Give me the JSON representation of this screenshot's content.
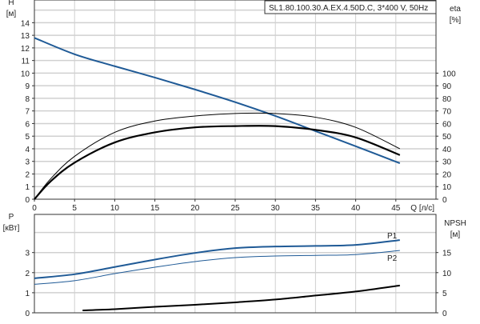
{
  "title": "SL1.80.100.30.A.EX.4.50D.C, 3*400 V, 50Hz",
  "colors": {
    "head": "#1f5a96",
    "eta": "#000000",
    "p": "#1f5a96",
    "npsh": "#000000",
    "grid": "#d0d0d0"
  },
  "chart_data": [
    {
      "type": "line",
      "xlabel": "Q [л/с]",
      "ylabel_left": [
        "H",
        "[м]"
      ],
      "ylabel_right": [
        "eta",
        "[%]"
      ],
      "xlim": [
        0,
        50
      ],
      "ylim_left": [
        0,
        15.8
      ],
      "ylim_right": [
        0,
        158
      ],
      "x_ticks": [
        "0",
        "5",
        "10",
        "15",
        "20",
        "25",
        "30",
        "35",
        "40",
        "45"
      ],
      "y_ticks_left": [
        "0",
        "1",
        "2",
        "3",
        "4",
        "5",
        "6",
        "7",
        "8",
        "9",
        "10",
        "11",
        "12",
        "13",
        "14"
      ],
      "y_ticks_right": [
        "0",
        "10",
        "20",
        "30",
        "40",
        "50",
        "60",
        "70",
        "80",
        "90",
        "100"
      ],
      "grid": true,
      "series": [
        {
          "axis": "left",
          "color": "#1f5a96",
          "width": 2,
          "x": [
            0,
            5,
            10,
            15,
            20,
            25,
            30,
            35,
            40,
            45.5
          ],
          "y": [
            12.8,
            11.5,
            10.55,
            9.65,
            8.7,
            7.7,
            6.6,
            5.4,
            4.2,
            2.85
          ]
        },
        {
          "axis": "right",
          "color": "#000000",
          "width": 2.2,
          "x": [
            0,
            2,
            5,
            10,
            15,
            20,
            25,
            30,
            35,
            40,
            45.5
          ],
          "y": [
            0,
            14,
            29,
            45,
            53,
            57,
            58,
            58,
            55,
            49,
            35
          ]
        },
        {
          "axis": "right",
          "color": "#000000",
          "width": 1,
          "x": [
            0,
            2,
            5,
            10,
            15,
            20,
            25,
            30,
            35,
            40,
            45.5
          ],
          "y": [
            0,
            16,
            34,
            53,
            62,
            66,
            68,
            68,
            65,
            57,
            40
          ]
        }
      ]
    },
    {
      "type": "line",
      "ylabel_left": [
        "P",
        "[кВт]"
      ],
      "ylabel_right": [
        "NPSH",
        "[м]"
      ],
      "xlim": [
        0,
        50
      ],
      "ylim_left": [
        0,
        4.9
      ],
      "ylim_right": [
        0,
        24.5
      ],
      "y_ticks_left": [
        "0",
        "1",
        "2",
        "3"
      ],
      "y_ticks_right": [
        "0",
        "5",
        "10",
        "15"
      ],
      "grid": true,
      "series": [
        {
          "name": "P1",
          "axis": "left",
          "color": "#1f5a96",
          "width": 2,
          "x": [
            0,
            5,
            10,
            15,
            20,
            25,
            30,
            35,
            40,
            45.5
          ],
          "y": [
            1.72,
            1.92,
            2.28,
            2.65,
            2.98,
            3.22,
            3.3,
            3.33,
            3.38,
            3.62
          ]
        },
        {
          "name": "P2",
          "axis": "left",
          "color": "#1f5a96",
          "width": 1,
          "x": [
            0,
            5,
            10,
            15,
            20,
            25,
            30,
            35,
            40,
            45.5
          ],
          "y": [
            1.42,
            1.6,
            1.95,
            2.27,
            2.55,
            2.75,
            2.83,
            2.86,
            2.9,
            3.1
          ]
        },
        {
          "axis": "right",
          "color": "#000000",
          "width": 2,
          "x": [
            6,
            10,
            15,
            20,
            25,
            30,
            35,
            40,
            45.5
          ],
          "y": [
            0.6,
            0.9,
            1.5,
            2.0,
            2.6,
            3.3,
            4.3,
            5.3,
            6.8
          ]
        }
      ]
    }
  ]
}
